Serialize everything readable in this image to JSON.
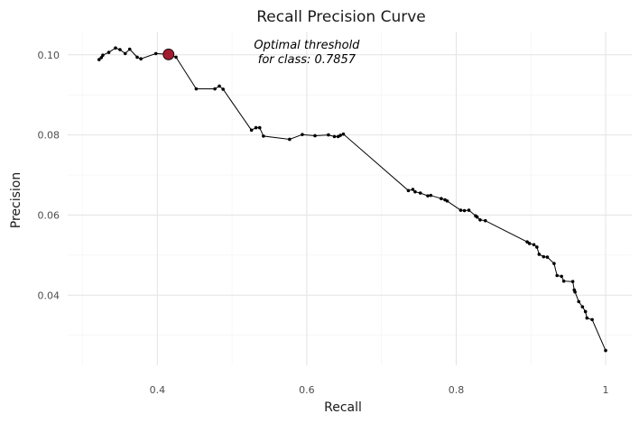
{
  "chart_data": {
    "type": "line",
    "title": "Recall Precision Curve",
    "xlabel": "Recall",
    "ylabel": "Precision",
    "xlim": [
      0.28,
      1.035
    ],
    "ylim": [
      0.0225,
      0.1058
    ],
    "xticks": [
      0.4,
      0.6,
      0.8,
      1.0
    ],
    "xtick_labels": [
      "0.4",
      "0.6",
      "0.8",
      "1"
    ],
    "yticks": [
      0.04,
      0.06,
      0.08,
      0.1
    ],
    "ytick_labels": [
      "0.04",
      "0.06",
      "0.08",
      "0.10"
    ],
    "grid": true,
    "line_color": "#000000",
    "series": [
      {
        "x": [
          0.322,
          0.325,
          0.327,
          0.335,
          0.344,
          0.35,
          0.357,
          0.363,
          0.373,
          0.378,
          0.398,
          0.415,
          0.425,
          0.452,
          0.477,
          0.483,
          0.488,
          0.526,
          0.532,
          0.537,
          0.542,
          0.577,
          0.594,
          0.611,
          0.629,
          0.637,
          0.642,
          0.645,
          0.649,
          0.736,
          0.742,
          0.745,
          0.752,
          0.762,
          0.766,
          0.78,
          0.785,
          0.788,
          0.806,
          0.811,
          0.817,
          0.826,
          0.828,
          0.832,
          0.839,
          0.895,
          0.898,
          0.904,
          0.908,
          0.911,
          0.917,
          0.922,
          0.931,
          0.935,
          0.941,
          0.944,
          0.956,
          0.958,
          0.959,
          0.964,
          0.969,
          0.973,
          0.975,
          0.982,
          1.0
        ],
        "y": [
          0.0988,
          0.0993,
          0.0999,
          0.1006,
          0.1017,
          0.1013,
          0.1003,
          0.1014,
          0.0994,
          0.099,
          0.1003,
          0.1001,
          0.0994,
          0.0915,
          0.0915,
          0.0922,
          0.0914,
          0.0812,
          0.0818,
          0.0818,
          0.0797,
          0.0789,
          0.0801,
          0.0798,
          0.08,
          0.0796,
          0.0796,
          0.0799,
          0.0802,
          0.0661,
          0.0664,
          0.0658,
          0.0655,
          0.0648,
          0.0649,
          0.0641,
          0.0638,
          0.0635,
          0.0612,
          0.0611,
          0.0612,
          0.0598,
          0.0595,
          0.0588,
          0.0586,
          0.0533,
          0.0529,
          0.0526,
          0.052,
          0.0502,
          0.0496,
          0.0495,
          0.0479,
          0.0449,
          0.0447,
          0.0435,
          0.0434,
          0.0413,
          0.0408,
          0.0384,
          0.0371,
          0.0359,
          0.0343,
          0.0339,
          0.0262
        ]
      }
    ],
    "highlight": {
      "x": 0.415,
      "y": 0.1001,
      "color": "#a11d30"
    },
    "annotation": {
      "lines": [
        "Optimal threshold",
        "for class: 0.7857"
      ],
      "x": 0.6,
      "y": 0.1002
    }
  }
}
